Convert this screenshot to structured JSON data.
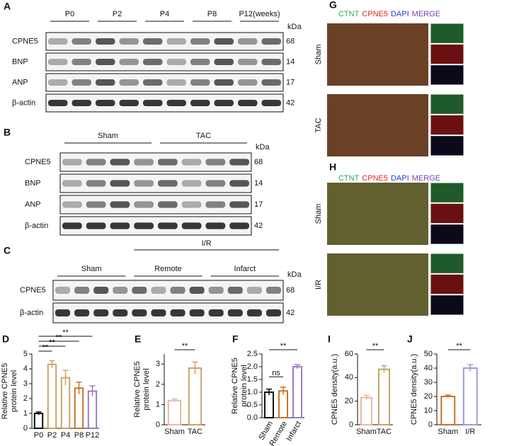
{
  "blots": [
    {
      "letter": "A",
      "groups": [
        "P0",
        "P2",
        "P4",
        "P8",
        "P12(weeks)"
      ],
      "unit": "kDa",
      "rows": [
        {
          "name": "CPNE5",
          "kda": 68
        },
        {
          "name": "BNP",
          "kda": 14
        },
        {
          "name": "ANP",
          "kda": 17
        },
        {
          "name": "β-actin",
          "kda": 42
        }
      ]
    },
    {
      "letter": "B",
      "groups": [
        "Sham",
        "TAC"
      ],
      "unit": "kDa",
      "rows": [
        {
          "name": "CPNE5",
          "kda": 68
        },
        {
          "name": "BNP",
          "kda": 14
        },
        {
          "name": "ANP",
          "kda": 17
        },
        {
          "name": "β-actin",
          "kda": 42
        }
      ]
    },
    {
      "letter": "C",
      "super": "I/R",
      "groups": [
        "Sham",
        "Remote",
        "Infarct"
      ],
      "unit": "kDa",
      "rows": [
        {
          "name": "CPNE5",
          "kda": 68
        },
        {
          "name": "β-actin",
          "kda": 42
        }
      ]
    }
  ],
  "images": [
    {
      "letter": "G",
      "legend": [
        {
          "text": "CTNT",
          "color": "#2fa84f"
        },
        {
          "text": "CPNE5",
          "color": "#e02828"
        },
        {
          "text": "DAPI",
          "color": "#2840c8"
        },
        {
          "text": "MERGE",
          "color": "#7a3fb0"
        }
      ],
      "rows": [
        "Sham",
        "TAC"
      ]
    },
    {
      "letter": "H",
      "legend": [
        {
          "text": "CTNT",
          "color": "#2fa84f"
        },
        {
          "text": "CPNE5",
          "color": "#e02828"
        },
        {
          "text": "DAPI",
          "color": "#2840c8"
        },
        {
          "text": "MERGE",
          "color": "#7a3fb0"
        }
      ],
      "rows": [
        "Sham",
        "I/R"
      ]
    }
  ],
  "chart_data": [
    {
      "letter": "D",
      "type": "bar",
      "ylabel": [
        "Relative CPNE5",
        "protein level"
      ],
      "categories": [
        "P0",
        "P2",
        "P4",
        "P8",
        "P12"
      ],
      "values": [
        1.0,
        4.3,
        3.4,
        2.7,
        2.5
      ],
      "errors": [
        0.1,
        0.25,
        0.5,
        0.4,
        0.35
      ],
      "colors": [
        "#111111",
        "#c9a46e",
        "#c9a46e",
        "#c8742a",
        "#9b7bc4"
      ],
      "ylim": [
        0,
        5
      ],
      "yticks": [
        0,
        1,
        2,
        3,
        4,
        5
      ],
      "annotations": [
        {
          "label": "**",
          "between": [
            "P0",
            "P2"
          ]
        },
        {
          "label": "**",
          "between": [
            "P0",
            "P4"
          ]
        },
        {
          "label": "**",
          "between": [
            "P0",
            "P8"
          ]
        },
        {
          "label": "**",
          "between": [
            "P0",
            "P12"
          ]
        }
      ]
    },
    {
      "letter": "E",
      "type": "bar",
      "ylabel": [
        "Relative CPNE5",
        "protein level"
      ],
      "categories": [
        "Sham",
        "TAC"
      ],
      "values": [
        1.2,
        2.8
      ],
      "errors": [
        0.08,
        0.3
      ],
      "colors": [
        "#e8b9a0",
        "#c9a46e"
      ],
      "ylim": [
        0,
        3.5
      ],
      "yticks": [
        0,
        1,
        2,
        3
      ],
      "annotations": [
        {
          "label": "**",
          "between": [
            "Sham",
            "TAC"
          ]
        }
      ]
    },
    {
      "letter": "F",
      "type": "bar",
      "ylabel": [
        "Relative CPNE5",
        "protein level"
      ],
      "categories": [
        "Sham",
        "Remote",
        "Infarct"
      ],
      "values": [
        1.0,
        1.05,
        2.0
      ],
      "errors": [
        0.12,
        0.15,
        0.08
      ],
      "colors": [
        "#111111",
        "#c8742a",
        "#9b7bc4"
      ],
      "ylim": [
        0,
        2.5
      ],
      "yticks": [
        {
          "value": 0,
          "label": "0.0"
        },
        {
          "value": 0.5,
          "label": "0.5"
        },
        {
          "value": 1,
          "label": "1.0"
        },
        {
          "value": 1.5,
          "label": "1.5"
        },
        {
          "value": 2,
          "label": "2.0"
        },
        {
          "value": 2.5,
          "label": "2.5"
        }
      ],
      "annotations": [
        {
          "label": "ns",
          "between": [
            "Sham",
            "Remote"
          ]
        },
        {
          "label": "**",
          "between": [
            "Sham",
            "Infarct"
          ]
        }
      ]
    },
    {
      "letter": "I",
      "type": "bar",
      "ylabel": [
        "CPNE5 density(a.u.)"
      ],
      "categories": [
        "Sham",
        "TAC"
      ],
      "values": [
        23,
        47
      ],
      "errors": [
        2,
        3
      ],
      "colors": [
        "#e8b9a0",
        "#c9a46e"
      ],
      "ylim": [
        0,
        60
      ],
      "yticks": [
        0,
        20,
        40,
        60
      ],
      "annotations": [
        {
          "label": "**",
          "between": [
            "Sham",
            "TAC"
          ]
        }
      ]
    },
    {
      "letter": "J",
      "type": "bar",
      "ylabel": [
        "CPNE5 density(a.u.)"
      ],
      "categories": [
        "Sham",
        "I/R"
      ],
      "values": [
        20,
        40
      ],
      "errors": [
        1,
        2.5
      ],
      "colors": [
        "#c8742a",
        "#9b9be0"
      ],
      "ylim": [
        0,
        50
      ],
      "yticks": [
        0,
        10,
        20,
        30,
        40,
        50
      ],
      "annotations": [
        {
          "label": "**",
          "between": [
            "Sham",
            "I/R"
          ]
        }
      ]
    }
  ]
}
